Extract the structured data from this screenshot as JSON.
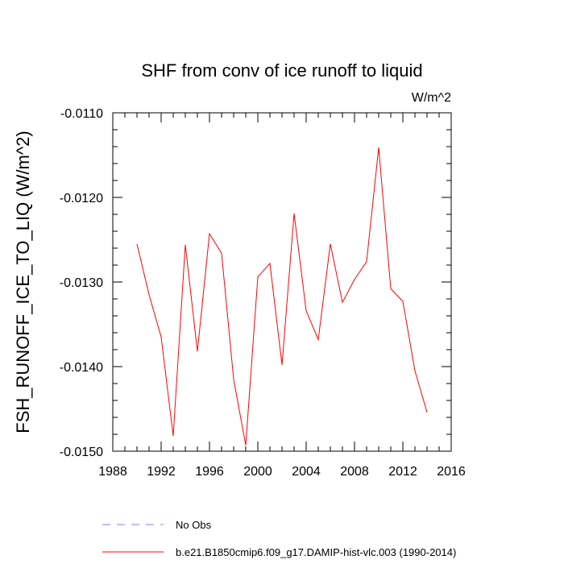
{
  "chart_data": {
    "type": "line",
    "title": "SHF from conv of ice runoff to liquid",
    "units_label": "W/m^2",
    "ylabel": "FSH_RUNOFF_ICE_TO_LIQ  (W/m^2)",
    "xlabel": "",
    "xlim": [
      1988,
      2016
    ],
    "ylim": [
      -0.015,
      -0.011
    ],
    "x_ticks": [
      1988,
      1992,
      1996,
      2000,
      2004,
      2008,
      2012,
      2016
    ],
    "x_tick_labels": [
      "1988",
      "1992",
      "1996",
      "2000",
      "2004",
      "2008",
      "2012",
      "2016"
    ],
    "y_ticks": [
      -0.011,
      -0.012,
      -0.013,
      -0.014,
      -0.015
    ],
    "y_tick_labels": [
      "-0.0110",
      "-0.0120",
      "-0.0130",
      "-0.0140",
      "-0.0150"
    ],
    "grid": false,
    "legend_position": "bottom",
    "series": [
      {
        "name": "No Obs",
        "color": "#8080ff",
        "dash": "dashed",
        "x": [],
        "values": []
      },
      {
        "name": "b.e21.B1850cmip6.f09_g17.DAMIP-hist-vlc.003 (1990-2014)",
        "color": "#ff0000",
        "dash": "solid",
        "x": [
          1990,
          1991,
          1992,
          1993,
          1994,
          1995,
          1996,
          1997,
          1998,
          1999,
          2000,
          2001,
          2002,
          2003,
          2004,
          2005,
          2006,
          2007,
          2008,
          2009,
          2010,
          2011,
          2012,
          2013,
          2014
        ],
        "values": [
          -0.01255,
          -0.01315,
          -0.01365,
          -0.01482,
          -0.01256,
          -0.01382,
          -0.01243,
          -0.01266,
          -0.01415,
          -0.01493,
          -0.01294,
          -0.01278,
          -0.01398,
          -0.01219,
          -0.01334,
          -0.01368,
          -0.01255,
          -0.01324,
          -0.01297,
          -0.01276,
          -0.01141,
          -0.01308,
          -0.01323,
          -0.01405,
          -0.01454
        ]
      }
    ]
  }
}
